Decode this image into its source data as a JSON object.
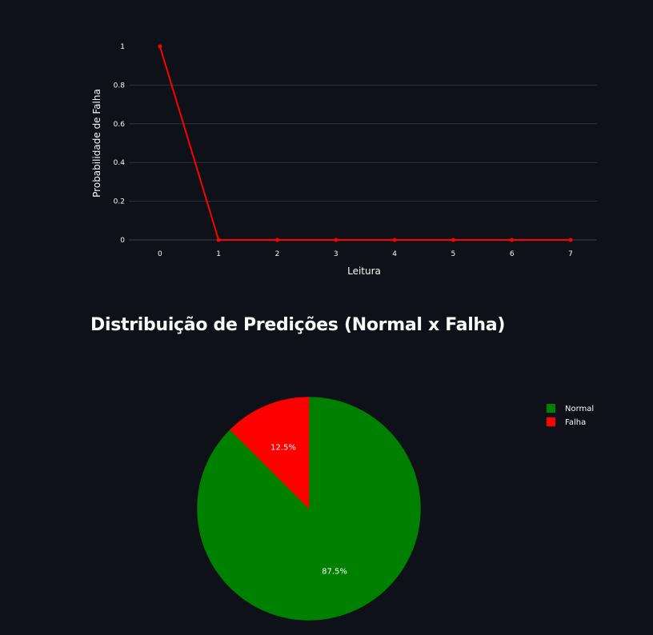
{
  "chart_data": [
    {
      "type": "line",
      "title": "",
      "xlabel": "Leitura",
      "ylabel": "Probabilidade de Falha",
      "x": [
        0,
        1,
        2,
        3,
        4,
        5,
        6,
        7
      ],
      "y": [
        1,
        0,
        0,
        0,
        0,
        0,
        0,
        0
      ],
      "xlim": [
        -0.53,
        7.45
      ],
      "ylim": [
        0,
        1
      ],
      "x_ticks": [
        "0",
        "1",
        "2",
        "3",
        "4",
        "5",
        "6",
        "7"
      ],
      "y_ticks": [
        "0",
        "0.2",
        "0.4",
        "0.6",
        "0.8",
        "1"
      ],
      "line_color": "#ff0000",
      "grid": true
    },
    {
      "type": "pie",
      "title": "Distribuição de Predições (Normal x Falha)",
      "labels": [
        "Normal",
        "Falha"
      ],
      "values": [
        87.5,
        12.5
      ],
      "value_labels": [
        "87.5%",
        "12.5%"
      ],
      "colors": [
        "#008000",
        "#ff0000"
      ],
      "legend_position": "top-right"
    }
  ],
  "colors": {
    "background": "#0e1117",
    "grid": "#31333f",
    "text": "#fafafa"
  }
}
